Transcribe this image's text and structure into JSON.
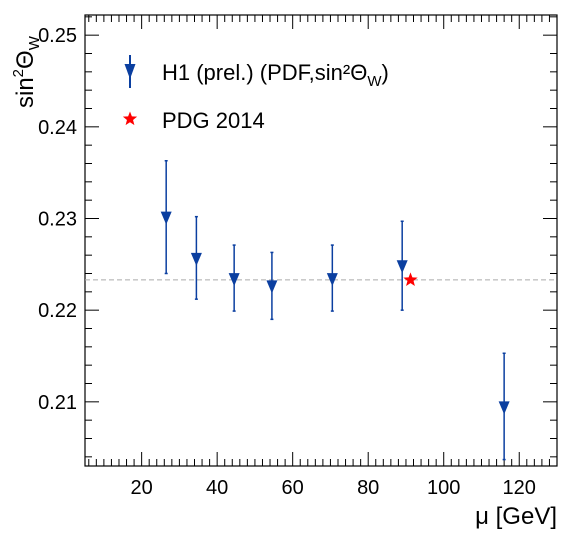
{
  "chart_data": {
    "type": "scatter",
    "xlabel": "μ [GeV]",
    "ylabel_base": "sin",
    "ylabel_sup": "2",
    "ylabel_theta": "Θ",
    "ylabel_sub": "W",
    "xlim": [
      5,
      130
    ],
    "ylim": [
      0.203,
      0.2522
    ],
    "x_ticks": [
      20,
      40,
      60,
      80,
      100,
      120
    ],
    "x_tick_labels": [
      "20",
      "40",
      "60",
      "80",
      "100",
      "120"
    ],
    "y_ticks": [
      0.21,
      0.22,
      0.23,
      0.24,
      0.25
    ],
    "y_tick_labels": [
      "0.21",
      "0.22",
      "0.23",
      "0.24",
      "0.25"
    ],
    "reference_line": {
      "y": 0.2233,
      "style": "dashed"
    },
    "series": [
      {
        "name": "H1 (prel.) (PDF,sin²Θ",
        "name_sub": "W",
        "name_tail": ")",
        "marker": "down-triangle",
        "color": "#0b3fa0",
        "points": [
          {
            "x": 26.5,
            "y": 0.2302,
            "ylow": 0.224,
            "yhigh": 0.2363
          },
          {
            "x": 34.5,
            "y": 0.2257,
            "ylow": 0.2212,
            "yhigh": 0.2302
          },
          {
            "x": 44.5,
            "y": 0.2235,
            "ylow": 0.2199,
            "yhigh": 0.2271
          },
          {
            "x": 54.5,
            "y": 0.2227,
            "ylow": 0.219,
            "yhigh": 0.2263
          },
          {
            "x": 70.5,
            "y": 0.2235,
            "ylow": 0.2199,
            "yhigh": 0.2271
          },
          {
            "x": 89.0,
            "y": 0.2249,
            "ylow": 0.22,
            "yhigh": 0.2297
          },
          {
            "x": 116.0,
            "y": 0.2095,
            "ylow": 0.2037,
            "yhigh": 0.2153
          }
        ]
      },
      {
        "name": "PDG 2014",
        "marker": "star",
        "color": "#ff0000",
        "points": [
          {
            "x": 91.2,
            "y": 0.2233
          }
        ]
      }
    ],
    "legend_position": "top-left"
  }
}
